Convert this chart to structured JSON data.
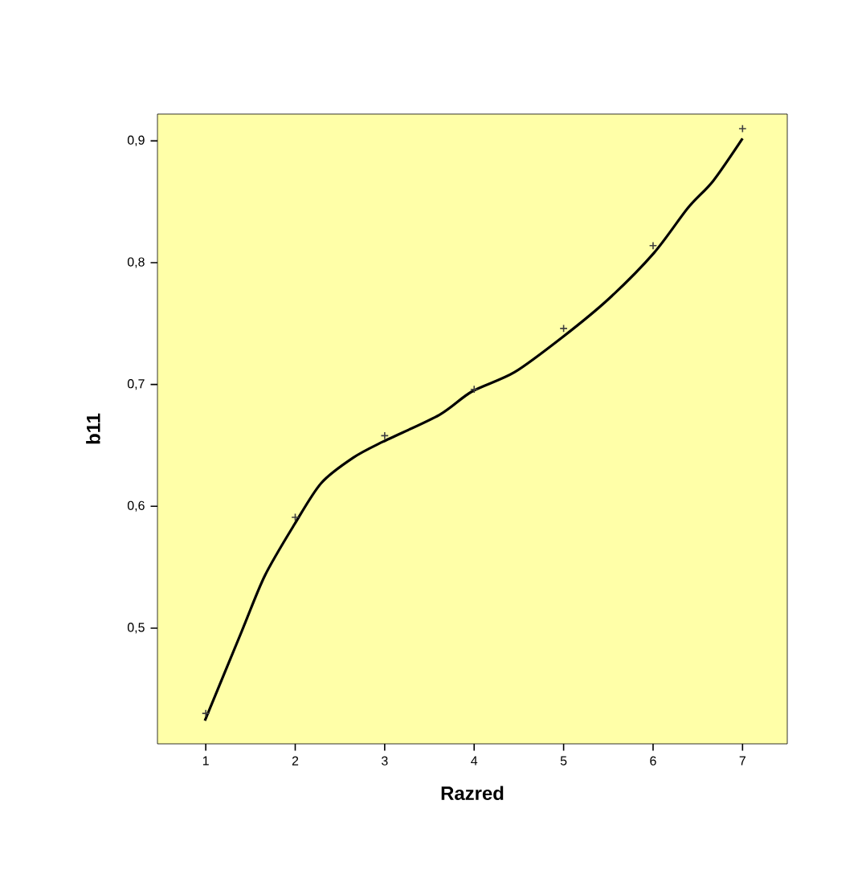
{
  "chart_data": {
    "type": "scatter",
    "xlabel": "Razred",
    "ylabel": "b11",
    "x": [
      1,
      2,
      3,
      4,
      5,
      6,
      7
    ],
    "series": [
      {
        "color": "#404040",
        "marker": "cross",
        "values": [
          0.43,
          0.591,
          0.658,
          0.696,
          0.746,
          0.814,
          0.91
        ]
      },
      {
        "type": "line",
        "color": "#000000",
        "x": [
          0.99,
          1.4,
          1.66,
          1.99,
          2.29,
          2.65,
          2.98,
          3.61,
          3.97,
          4.45,
          4.99,
          5.5,
          6.01,
          6.39,
          6.67,
          7.0
        ],
        "values": [
          0.424,
          0.497,
          0.543,
          0.585,
          0.619,
          0.64,
          0.653,
          0.675,
          0.694,
          0.71,
          0.739,
          0.77,
          0.808,
          0.845,
          0.867,
          0.902
        ]
      }
    ],
    "xlim": [
      0.46,
      7.5
    ],
    "ylim": [
      0.405,
      0.922
    ],
    "xticks": [
      1,
      2,
      3,
      4,
      5,
      6,
      7
    ],
    "yticks": [
      {
        "value": 0.5,
        "label": "0,5"
      },
      {
        "value": 0.6,
        "label": "0,6"
      },
      {
        "value": 0.7,
        "label": "0,7"
      },
      {
        "value": 0.8,
        "label": "0,8"
      },
      {
        "value": 0.9,
        "label": "0,9"
      }
    ]
  }
}
